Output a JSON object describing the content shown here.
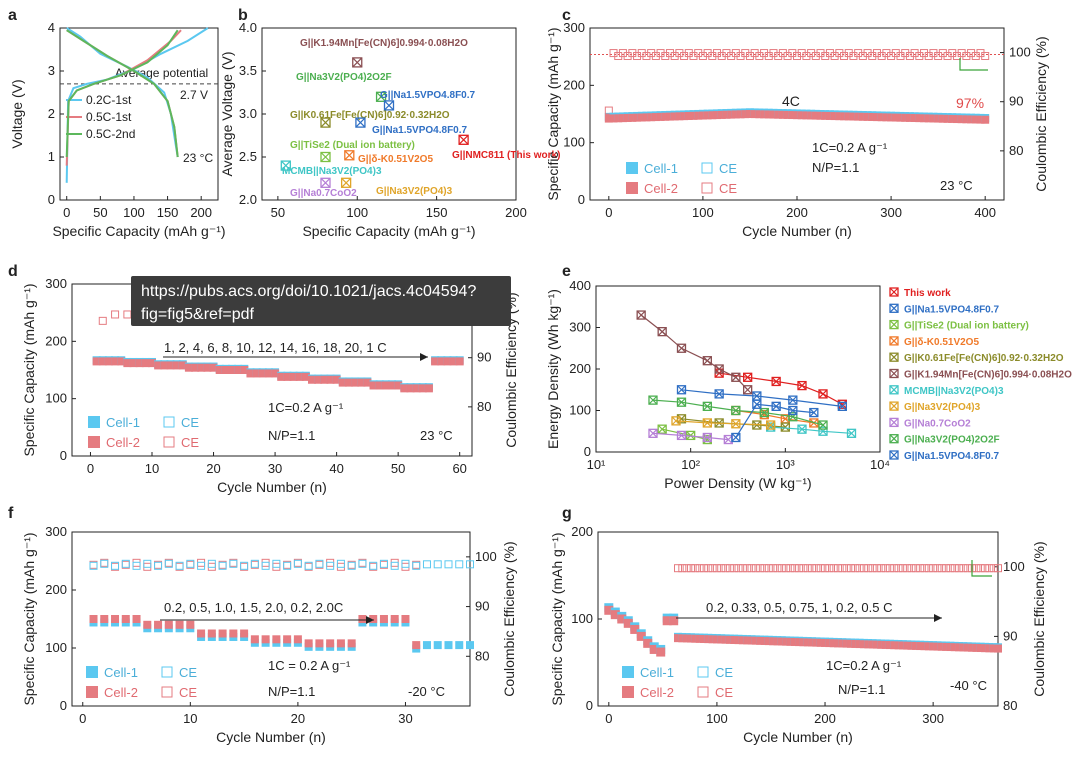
{
  "tooltip": {
    "line1": "https://pubs.acs.org/doi/10.1021/jacs.4c04594?",
    "line2": "fig=fig5&ref=pdf"
  },
  "colors": {
    "blue": "#5bc8f0",
    "red": "#e57b80",
    "dark": "#222222",
    "text_red": "#e04a4a",
    "green_arrow": "#3aa53a"
  },
  "chart_data": [
    {
      "id": "a",
      "type": "line",
      "panel_label": "a",
      "xlabel": "Specific Capacity (mAh g⁻¹)",
      "ylabel": "Voltage (V)",
      "xlim": [
        -10,
        225
      ],
      "ylim": [
        0,
        4
      ],
      "xticks": [
        0,
        50,
        100,
        150,
        200
      ],
      "yticks": [
        0,
        1,
        2,
        3,
        4
      ],
      "annotations": {
        "avg": "Average potential",
        "avg_val": "2.7 V",
        "temp": "23 °C"
      },
      "avg_potential": 2.7,
      "series": [
        {
          "name": "0.2C-1st",
          "color": "#5bc8f0",
          "charge": [
            [
              0,
              0.4
            ],
            [
              2,
              2.3
            ],
            [
              10,
              2.6
            ],
            [
              30,
              2.7
            ],
            [
              60,
              2.8
            ],
            [
              100,
              3.05
            ],
            [
              140,
              3.4
            ],
            [
              180,
              3.7
            ],
            [
              210,
              4.0
            ]
          ],
          "discharge": [
            [
              0,
              4.0
            ],
            [
              20,
              3.8
            ],
            [
              50,
              3.4
            ],
            [
              90,
              3.1
            ],
            [
              120,
              2.85
            ],
            [
              145,
              2.5
            ],
            [
              155,
              2.0
            ],
            [
              162,
              1.3
            ],
            [
              165,
              1.0
            ]
          ]
        },
        {
          "name": "0.5C-1st",
          "color": "#e57b80",
          "charge": [
            [
              0,
              0.8
            ],
            [
              3,
              2.3
            ],
            [
              15,
              2.55
            ],
            [
              40,
              2.7
            ],
            [
              80,
              2.9
            ],
            [
              120,
              3.25
            ],
            [
              155,
              3.7
            ],
            [
              170,
              3.95
            ]
          ],
          "discharge": [
            [
              0,
              3.95
            ],
            [
              25,
              3.7
            ],
            [
              60,
              3.35
            ],
            [
              100,
              3.0
            ],
            [
              130,
              2.7
            ],
            [
              150,
              2.3
            ],
            [
              160,
              1.7
            ],
            [
              165,
              1.0
            ]
          ]
        },
        {
          "name": "0.5C-2nd",
          "color": "#5cb85c",
          "charge": [
            [
              0,
              1.0
            ],
            [
              3,
              2.3
            ],
            [
              15,
              2.55
            ],
            [
              40,
              2.7
            ],
            [
              80,
              2.9
            ],
            [
              120,
              3.2
            ],
            [
              150,
              3.6
            ],
            [
              165,
              3.95
            ]
          ],
          "discharge": [
            [
              0,
              3.95
            ],
            [
              25,
              3.7
            ],
            [
              60,
              3.35
            ],
            [
              100,
              3.0
            ],
            [
              130,
              2.7
            ],
            [
              150,
              2.3
            ],
            [
              160,
              1.7
            ],
            [
              165,
              1.0
            ]
          ]
        }
      ]
    },
    {
      "id": "b",
      "type": "scatter",
      "panel_label": "b",
      "xlabel": "Specific Capacity (mAh g⁻¹)",
      "ylabel": "Average Voltage (V)",
      "xlim": [
        40,
        200
      ],
      "ylim": [
        2.0,
        4.0
      ],
      "xticks": [
        50,
        100,
        150,
        200
      ],
      "yticks": [
        2.0,
        2.5,
        3.0,
        3.5,
        4.0
      ],
      "points": [
        {
          "label": "G||K1.94Mn[Fe(CN)6]0.994·0.08H2O",
          "x": 100,
          "y": 3.6,
          "color": "#8a4f52"
        },
        {
          "label": "G||Na3V2(PO4)2O2F",
          "x": 115,
          "y": 3.2,
          "color": "#4caf50"
        },
        {
          "label": "G||Na1.5VPO4.8F0.7",
          "x": 120,
          "y": 3.1,
          "color": "#2f6fc4"
        },
        {
          "label": "G||K0.61Fe[Fe(CN)6]0.92·0.32H2O",
          "x": 80,
          "y": 2.9,
          "color": "#8b8b2a"
        },
        {
          "label": "G||Na1.5VPO4.8F0.7",
          "x": 102,
          "y": 2.9,
          "color": "#2f6fc4"
        },
        {
          "label": "G||TiSe2 (Dual ion battery)",
          "x": 80,
          "y": 2.5,
          "color": "#7cc043"
        },
        {
          "label": "G||δ-K0.51V2O5",
          "x": 95,
          "y": 2.52,
          "color": "#f07a2a"
        },
        {
          "label": "G||NMC811 (This work)",
          "x": 167,
          "y": 2.7,
          "color": "#e02020"
        },
        {
          "label": "MCMB||Na3V2(PO4)3",
          "x": 55,
          "y": 2.4,
          "color": "#3fc6c6"
        },
        {
          "label": "G||Na0.7CoO2",
          "x": 80,
          "y": 2.2,
          "color": "#b57fd6"
        },
        {
          "label": "G||Na3V2(PO4)3",
          "x": 93,
          "y": 2.2,
          "color": "#e0a52a"
        }
      ]
    },
    {
      "id": "c",
      "type": "scatter",
      "panel_label": "c",
      "xlabel": "Cycle Number (n)",
      "ylabel": "Specific Capacity (mAh g⁻¹)",
      "y2label": "Coulombic Efficiency (%)",
      "xlim": [
        -20,
        420
      ],
      "ylim": [
        0,
        300
      ],
      "y2lim": [
        70,
        105
      ],
      "xticks": [
        0,
        100,
        200,
        300,
        400
      ],
      "yticks": [
        0,
        100,
        200,
        300
      ],
      "y2ticks": [
        80,
        90,
        100
      ],
      "rate_label": "4C",
      "retention_label": "97%",
      "note1": "1C=0.2 A g⁻¹",
      "note2": "N/P=1.1",
      "temp": "23 °C",
      "legend": [
        "Cell-1",
        "CE",
        "Cell-2",
        "CE"
      ],
      "capacity_start": 142,
      "capacity_mid": 150,
      "capacity_end": 140,
      "ce_first": 88.5,
      "ce_value": 99.6
    },
    {
      "id": "d",
      "type": "scatter",
      "panel_label": "d",
      "xlabel": "Cycle Number (n)",
      "ylabel": "Specific Capacity (mAh g⁻¹)",
      "y2label": "Coulombic Efficiency (%)",
      "xlim": [
        -3,
        62
      ],
      "ylim": [
        0,
        300
      ],
      "y2lim": [
        70,
        105
      ],
      "xticks": [
        0,
        10,
        20,
        30,
        40,
        50,
        60
      ],
      "yticks": [
        0,
        100,
        200,
        300
      ],
      "y2ticks": [
        80,
        90
      ],
      "rates_label": "1, 2, 4, 6, 8, 10, 12, 14, 16, 18, 20, 1 C",
      "note1": "1C=0.2 A g⁻¹",
      "note2": "N/P=1.1",
      "temp": "23 °C",
      "legend": [
        "Cell-1",
        "CE",
        "Cell-2",
        "CE"
      ],
      "steps": [
        165,
        162,
        158,
        154,
        150,
        144,
        138,
        133,
        128,
        123,
        118,
        165
      ]
    },
    {
      "id": "e",
      "type": "line",
      "panel_label": "e",
      "xscale": "log",
      "xlabel": "Power Density (W kg⁻¹)",
      "ylabel": "Energy Density (Wh kg⁻¹)",
      "xlim": [
        10,
        10000
      ],
      "ylim": [
        0,
        400
      ],
      "xticks": [
        "10¹",
        "10²",
        "10³",
        "10⁴"
      ],
      "yticks": [
        0,
        100,
        200,
        300,
        400
      ],
      "series": [
        {
          "name": "This work",
          "color": "#e02020",
          "points": [
            [
              200,
              190
            ],
            [
              400,
              180
            ],
            [
              800,
              170
            ],
            [
              1500,
              160
            ],
            [
              2500,
              140
            ],
            [
              4000,
              115
            ]
          ]
        },
        {
          "name": "G||Na1.5VPO4.8F0.7",
          "color": "#2f6fc4",
          "points": [
            [
              80,
              150
            ],
            [
              200,
              140
            ],
            [
              500,
              135
            ],
            [
              1200,
              125
            ],
            [
              4000,
              110
            ]
          ]
        },
        {
          "name": "G||TiSe2 (Dual ion battery)",
          "color": "#7cc043",
          "points": [
            [
              50,
              55
            ],
            [
              100,
              40
            ],
            [
              150,
              30
            ]
          ]
        },
        {
          "name": "G||δ-K0.51V2O5",
          "color": "#f07a2a",
          "points": [
            [
              300,
              100
            ],
            [
              600,
              90
            ],
            [
              1000,
              80
            ],
            [
              2000,
              70
            ]
          ]
        },
        {
          "name": "G||K0.61Fe[Fe(CN)6]0.92·0.32H2O",
          "color": "#8b8b2a",
          "points": [
            [
              80,
              80
            ],
            [
              200,
              70
            ],
            [
              500,
              65
            ],
            [
              1000,
              60
            ]
          ]
        },
        {
          "name": "G||K1.94Mn[Fe(CN)6]0.994·0.08H2O",
          "color": "#8a4f52",
          "points": [
            [
              30,
              330
            ],
            [
              50,
              290
            ],
            [
              80,
              250
            ],
            [
              150,
              220
            ],
            [
              200,
              200
            ],
            [
              300,
              180
            ],
            [
              400,
              150
            ]
          ]
        },
        {
          "name": "MCMB||Na3V2(PO4)3",
          "color": "#3fc6c6",
          "points": [
            [
              700,
              60
            ],
            [
              1500,
              55
            ],
            [
              2500,
              50
            ],
            [
              5000,
              45
            ]
          ]
        },
        {
          "name": "G||Na3V2(PO4)3",
          "color": "#e0a52a",
          "points": [
            [
              70,
              75
            ],
            [
              150,
              70
            ],
            [
              300,
              68
            ],
            [
              700,
              65
            ]
          ]
        },
        {
          "name": "G||Na0.7CoO2",
          "color": "#b57fd6",
          "points": [
            [
              40,
              45
            ],
            [
              80,
              40
            ],
            [
              150,
              35
            ],
            [
              250,
              30
            ]
          ]
        },
        {
          "name": "G||Na3V2(PO4)2O2F",
          "color": "#4caf50",
          "points": [
            [
              40,
              125
            ],
            [
              80,
              120
            ],
            [
              150,
              110
            ],
            [
              300,
              100
            ],
            [
              600,
              95
            ],
            [
              1200,
              85
            ],
            [
              2500,
              65
            ]
          ]
        },
        {
          "name": "G||Na1.5VPO4.8F0.7",
          "color": "#2f6fc4",
          "points": [
            [
              300,
              35
            ],
            [
              500,
              115
            ],
            [
              800,
              110
            ],
            [
              1200,
              100
            ],
            [
              2000,
              95
            ]
          ]
        }
      ]
    },
    {
      "id": "f",
      "type": "scatter",
      "panel_label": "f",
      "xlabel": "Cycle Number (n)",
      "ylabel": "Specific Capacity (mAh g⁻¹)",
      "y2label": "Coulombic Efficiency (%)",
      "xlim": [
        -1,
        36
      ],
      "ylim": [
        0,
        300
      ],
      "y2lim": [
        70,
        105
      ],
      "xticks": [
        0,
        10,
        20,
        30
      ],
      "yticks": [
        0,
        100,
        200,
        300
      ],
      "y2ticks": [
        80,
        90,
        100
      ],
      "rates_label": "0.2, 0.5, 1.0, 1.5, 2.0, 0.2, 2.0C",
      "note1": "1C = 0.2 A g⁻¹",
      "note2": "N/P=1.1",
      "temp": "-20 °C",
      "legend": [
        "Cell-1",
        "CE",
        "Cell-2",
        "CE"
      ],
      "steps": [
        150,
        140,
        125,
        115,
        108,
        150,
        105
      ]
    },
    {
      "id": "g",
      "type": "scatter",
      "panel_label": "g",
      "xlabel": "Cycle Number (n)",
      "ylabel": "Specific Capacity (mAh g⁻¹)",
      "y2label": "Coulombic Efficiency (%)",
      "xlim": [
        -10,
        360
      ],
      "ylim": [
        0,
        200
      ],
      "y2lim": [
        80,
        105
      ],
      "xticks": [
        0,
        100,
        200,
        300
      ],
      "yticks": [
        0,
        100,
        200
      ],
      "y2ticks": [
        80,
        90,
        100
      ],
      "rates_label": "0.2, 0.33, 0.5, 0.75, 1, 0.2, 0.5 C",
      "note1": "1C=0.2 A g⁻¹",
      "note2": "N/P=1.1",
      "temp": "-40 °C",
      "legend": [
        "Cell-1",
        "CE",
        "Cell-2",
        "CE"
      ],
      "capacity_start": 78,
      "capacity_end": 66,
      "ce_value": 100
    }
  ]
}
